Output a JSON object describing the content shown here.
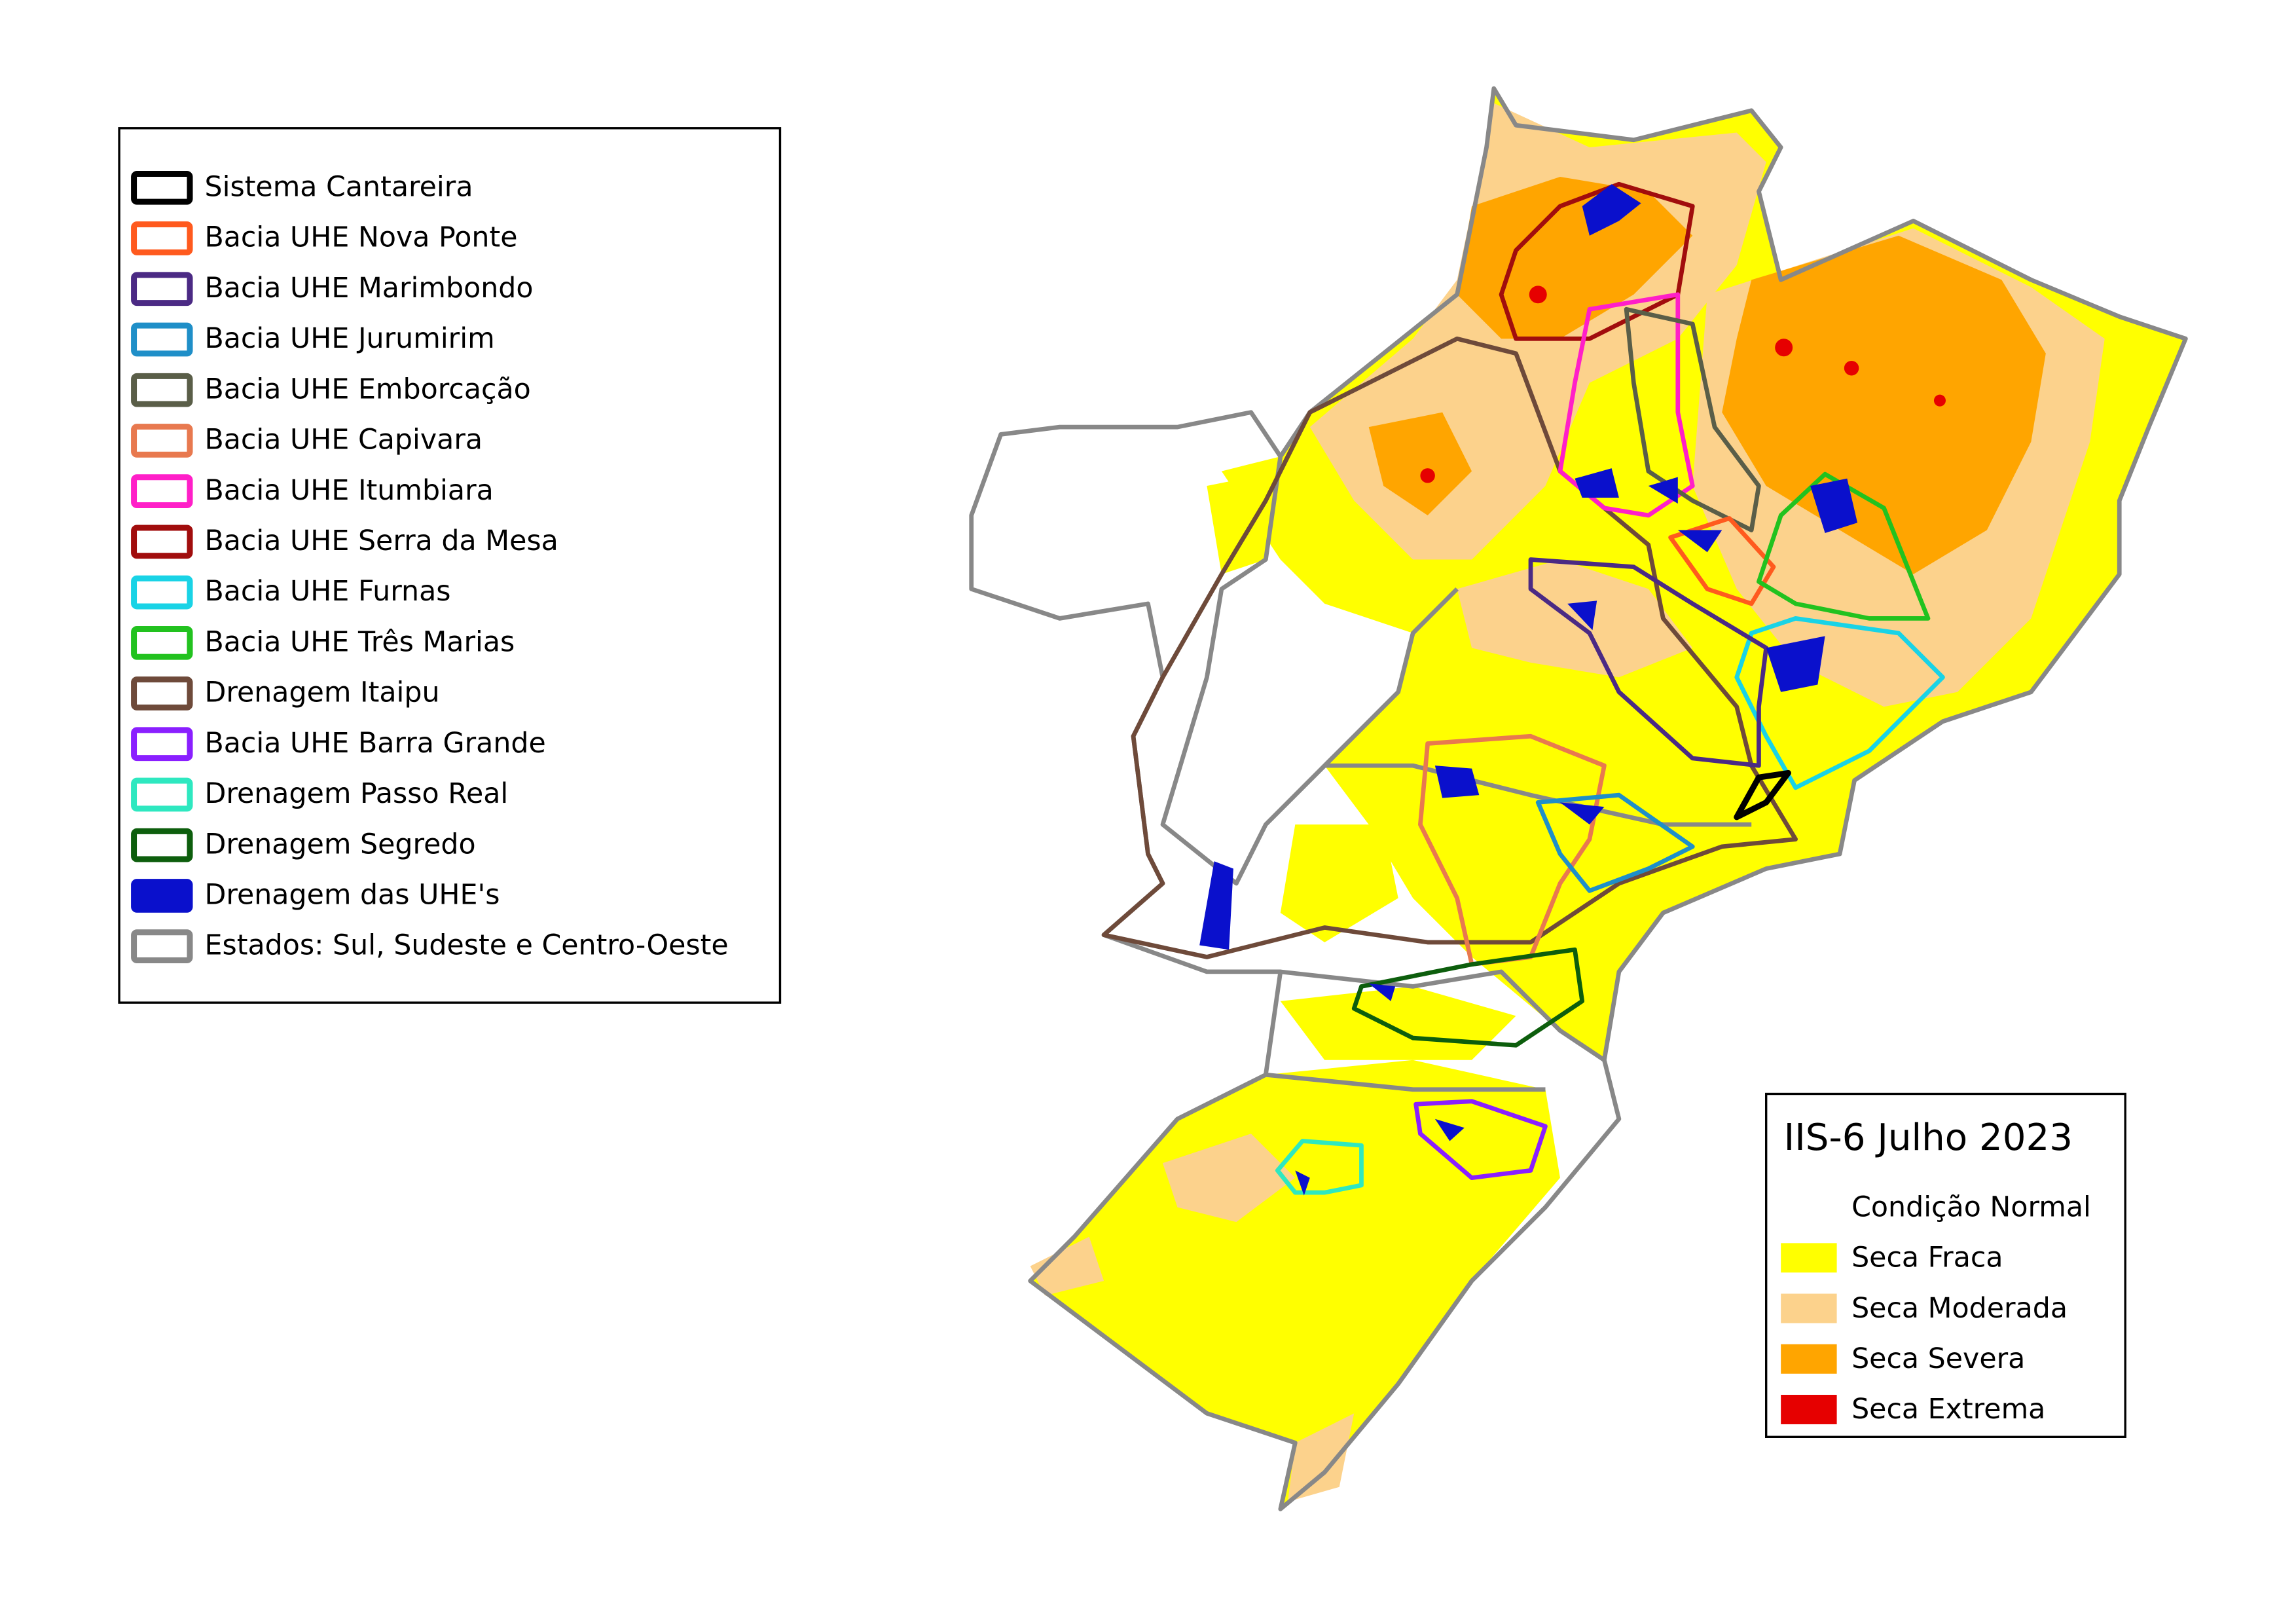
{
  "basin_legend": {
    "items": [
      {
        "label": "Sistema Cantareira",
        "color": "#000000"
      },
      {
        "label": "Bacia UHE Nova Ponte",
        "color": "#ff5a1e"
      },
      {
        "label": "Bacia UHE Marimbondo",
        "color": "#4b2a84"
      },
      {
        "label": "Bacia UHE Jurumirim",
        "color": "#1f8fc8"
      },
      {
        "label": "Bacia UHE Emborcação",
        "color": "#5a5e48"
      },
      {
        "label": "Bacia UHE Capivara",
        "color": "#e8794f"
      },
      {
        "label": "Bacia UHE Itumbiara",
        "color": "#ff1fc8"
      },
      {
        "label": "Bacia UHE Serra da Mesa",
        "color": "#a10d0d"
      },
      {
        "label": "Bacia UHE Furnas",
        "color": "#19d3e6"
      },
      {
        "label": "Bacia UHE Três Marias",
        "color": "#22c21f"
      },
      {
        "label": "Drenagem Itaipu",
        "color": "#6e4a3a"
      },
      {
        "label": "Bacia UHE Barra Grande",
        "color": "#8a1fff"
      },
      {
        "label": "Drenagem Passo Real",
        "color": "#2ee8c0"
      },
      {
        "label": "Drenagem Segredo",
        "color": "#0d5e0d"
      },
      {
        "label": "Drenagem das UHE's",
        "color": "#0a10cc",
        "filled": true
      },
      {
        "label": "Estados: Sul, Sudeste e Centro-Oeste",
        "color": "#888888"
      }
    ]
  },
  "drought_legend": {
    "title": "IIS-6 Julho 2023",
    "items": [
      {
        "label": "Condição Normal",
        "color": "#ffffff"
      },
      {
        "label": "Seca Fraca",
        "color": "#ffff00"
      },
      {
        "label": "Seca Moderada",
        "color": "#fcd28c"
      },
      {
        "label": "Seca Severa",
        "color": "#ffa500"
      },
      {
        "label": "Seca Extrema",
        "color": "#e60000"
      }
    ]
  }
}
